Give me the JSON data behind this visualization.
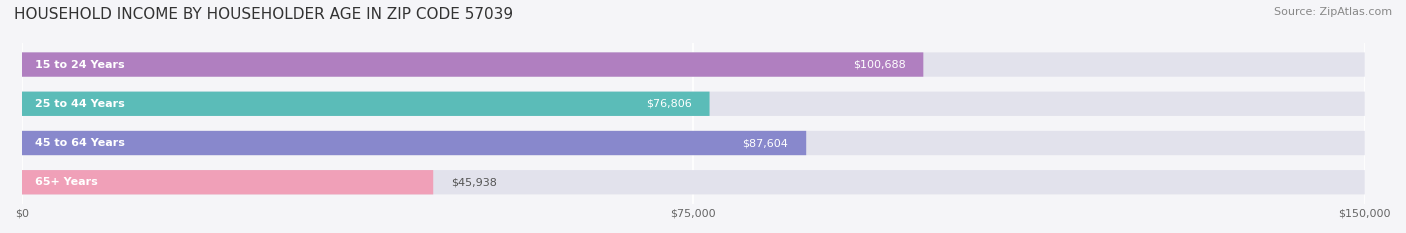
{
  "title": "HOUSEHOLD INCOME BY HOUSEHOLDER AGE IN ZIP CODE 57039",
  "source": "Source: ZipAtlas.com",
  "categories": [
    "15 to 24 Years",
    "25 to 44 Years",
    "45 to 64 Years",
    "65+ Years"
  ],
  "values": [
    100688,
    76806,
    87604,
    45938
  ],
  "bar_colors": [
    "#b07fc0",
    "#5bbcb8",
    "#8888cc",
    "#f0a0b8"
  ],
  "bar_bg_color": "#e8e8f0",
  "label_texts": [
    "$100,688",
    "$76,806",
    "$87,604",
    "$45,938"
  ],
  "xlim": [
    0,
    150000
  ],
  "xticks": [
    0,
    75000,
    150000
  ],
  "xtick_labels": [
    "$0",
    "$75,000",
    "$150,000"
  ],
  "title_fontsize": 11,
  "source_fontsize": 8,
  "label_fontsize": 8,
  "tick_fontsize": 8,
  "cat_fontsize": 8,
  "background_color": "#f5f5f8",
  "bar_background_color": "#e2e2ec"
}
